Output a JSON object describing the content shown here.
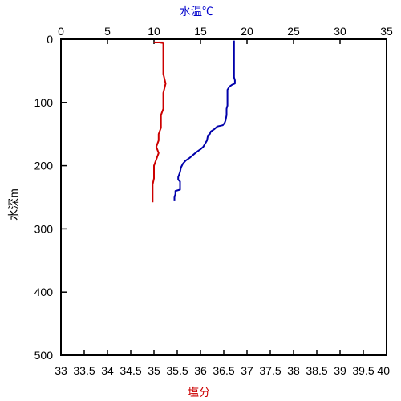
{
  "chart_data": {
    "type": "line",
    "top_axis": {
      "label": "水温℃",
      "range": [
        0,
        35
      ],
      "ticks": [
        "0",
        "5",
        "10",
        "15",
        "20",
        "25",
        "30",
        "35"
      ],
      "color": "#0000cc"
    },
    "bottom_axis": {
      "label": "塩分",
      "range": [
        33,
        40
      ],
      "ticks": [
        "33",
        "33.5",
        "34",
        "34.5",
        "35",
        "35.5",
        "36",
        "36.5",
        "37",
        "37.5",
        "38",
        "38.5",
        "39",
        "39.5",
        "40"
      ],
      "color": "#cc0000"
    },
    "y_axis": {
      "label": "水深m",
      "range": [
        0,
        500
      ],
      "inverted": true,
      "ticks": [
        "0",
        "100",
        "200",
        "300",
        "400",
        "500"
      ]
    },
    "grid": false,
    "series": [
      {
        "axis": "top",
        "color": "#0000aa",
        "points": [
          [
            18.6,
            2
          ],
          [
            18.6,
            30
          ],
          [
            18.6,
            60
          ],
          [
            18.7,
            65
          ],
          [
            18.7,
            70
          ],
          [
            18.4,
            72
          ],
          [
            18.1,
            75
          ],
          [
            17.9,
            80
          ],
          [
            17.9,
            90
          ],
          [
            17.9,
            105
          ],
          [
            17.8,
            110
          ],
          [
            17.8,
            120
          ],
          [
            17.7,
            128
          ],
          [
            17.6,
            132
          ],
          [
            17.4,
            136
          ],
          [
            16.8,
            138
          ],
          [
            16.5,
            142
          ],
          [
            16.1,
            146
          ],
          [
            16.0,
            150
          ],
          [
            15.8,
            152
          ],
          [
            15.7,
            160
          ],
          [
            15.5,
            165
          ],
          [
            15.3,
            170
          ],
          [
            15.0,
            174
          ],
          [
            14.6,
            178
          ],
          [
            14.2,
            183
          ],
          [
            13.8,
            188
          ],
          [
            13.4,
            192
          ],
          [
            13.1,
            197
          ],
          [
            12.9,
            203
          ],
          [
            12.8,
            210
          ],
          [
            12.6,
            218
          ],
          [
            12.6,
            222
          ],
          [
            12.8,
            225
          ],
          [
            12.8,
            232
          ],
          [
            12.8,
            238
          ],
          [
            12.3,
            240
          ],
          [
            12.3,
            245
          ],
          [
            12.2,
            250
          ],
          [
            12.2,
            255
          ]
        ]
      },
      {
        "axis": "bottom",
        "color": "#cc0000",
        "points": [
          [
            35.1,
            5
          ],
          [
            35.2,
            6
          ],
          [
            35.2,
            20
          ],
          [
            35.2,
            40
          ],
          [
            35.2,
            55
          ],
          [
            35.25,
            70
          ],
          [
            35.2,
            85
          ],
          [
            35.2,
            100
          ],
          [
            35.2,
            110
          ],
          [
            35.15,
            120
          ],
          [
            35.15,
            130
          ],
          [
            35.15,
            140
          ],
          [
            35.1,
            150
          ],
          [
            35.1,
            160
          ],
          [
            35.05,
            170
          ],
          [
            35.1,
            180
          ],
          [
            35.05,
            190
          ],
          [
            35.0,
            200
          ],
          [
            35.0,
            210
          ],
          [
            35.0,
            220
          ],
          [
            34.97,
            230
          ],
          [
            34.97,
            240
          ],
          [
            34.97,
            250
          ],
          [
            34.97,
            258
          ]
        ]
      }
    ]
  }
}
